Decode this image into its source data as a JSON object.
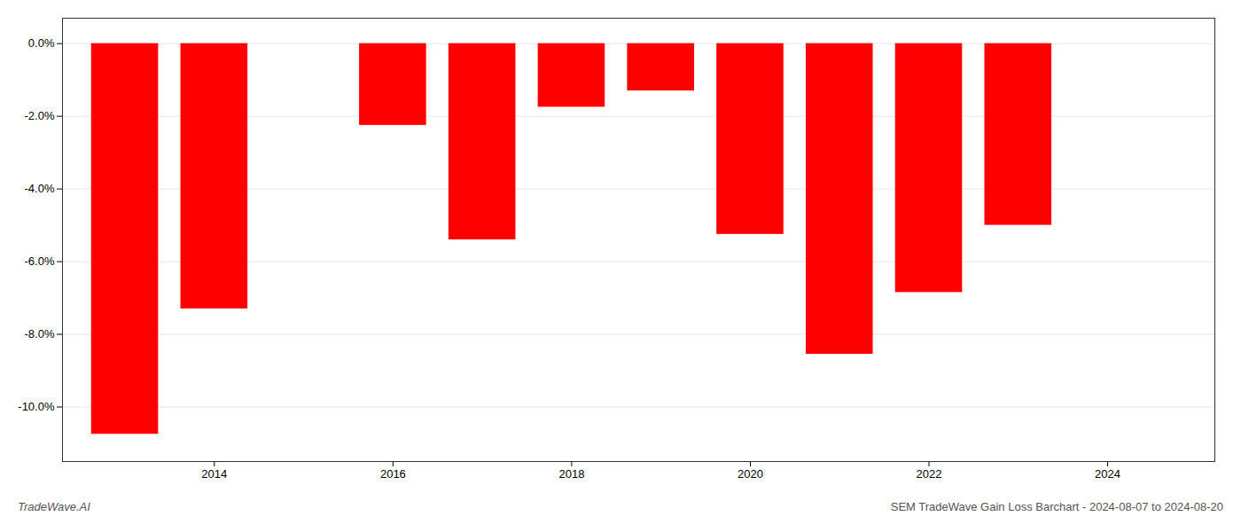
{
  "chart_data": {
    "type": "bar",
    "x": [
      2013,
      2014,
      2016,
      2017,
      2018,
      2019,
      2020,
      2021,
      2022,
      2023
    ],
    "values": [
      -10.75,
      -7.3,
      -2.25,
      -5.4,
      -1.75,
      -1.3,
      -5.25,
      -8.55,
      -6.85,
      -5.0
    ],
    "color": "#ff0000",
    "xlim": [
      2012.3,
      2025.2
    ],
    "ylim": [
      -11.5,
      0.7
    ],
    "xticks": [
      2014,
      2016,
      2018,
      2020,
      2022,
      2024
    ],
    "yticks": [
      {
        "value": 0.0,
        "label": "0.0%"
      },
      {
        "value": -2.0,
        "label": "-2.0%"
      },
      {
        "value": -4.0,
        "label": "-4.0%"
      },
      {
        "value": -6.0,
        "label": "-6.0%"
      },
      {
        "value": -8.0,
        "label": "-8.0%"
      },
      {
        "value": -10.0,
        "label": "-10.0%"
      }
    ],
    "grid": true,
    "annotations": [
      "TradeWave.AI",
      "SEM TradeWave Gain Loss Barchart - 2024-08-07 to 2024-08-20"
    ]
  }
}
